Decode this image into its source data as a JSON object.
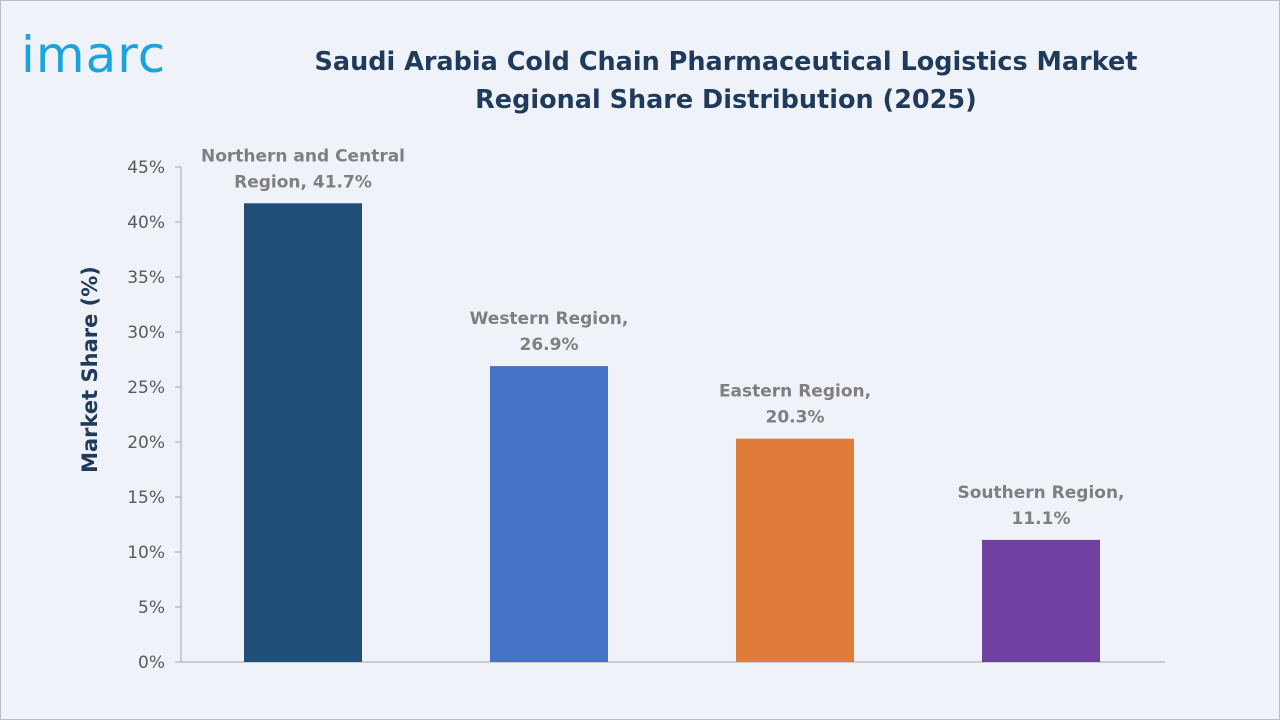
{
  "brand": {
    "logo_text": "imarc"
  },
  "colors": {
    "title": "#1f3b5c",
    "axis_title": "#1f3b5c",
    "tick_label": "#595959",
    "data_label": "#7f7f7f",
    "axis_line": "#a6a6a6",
    "logo": "#1aa3dc"
  },
  "chart_data": {
    "type": "bar",
    "title": "Saudi Arabia Cold Chain Pharmaceutical Logistics Market Regional Share Distribution (2025)",
    "xlabel": "",
    "ylabel": "Market Share (%)",
    "ylim": [
      0,
      45
    ],
    "yticks": [
      0,
      5,
      10,
      15,
      20,
      25,
      30,
      35,
      40,
      45
    ],
    "ytick_labels": [
      "0%",
      "5%",
      "10%",
      "15%",
      "20%",
      "25%",
      "30%",
      "35%",
      "40%",
      "45%"
    ],
    "grid": false,
    "legend": "none",
    "categories": [
      "Northern and Central Region",
      "Western Region",
      "Eastern Region",
      "Southern Region"
    ],
    "values": [
      41.7,
      26.9,
      20.3,
      11.1
    ],
    "bar_colors": [
      "#1f4e79",
      "#4472c4",
      "#e07b39",
      "#7040a0"
    ],
    "data_labels": [
      [
        "Northern and Central",
        "Region, 41.7%"
      ],
      [
        "Western Region,",
        "26.9%"
      ],
      [
        "Eastern Region,",
        "20.3%"
      ],
      [
        "Southern Region,",
        "11.1%"
      ]
    ]
  }
}
